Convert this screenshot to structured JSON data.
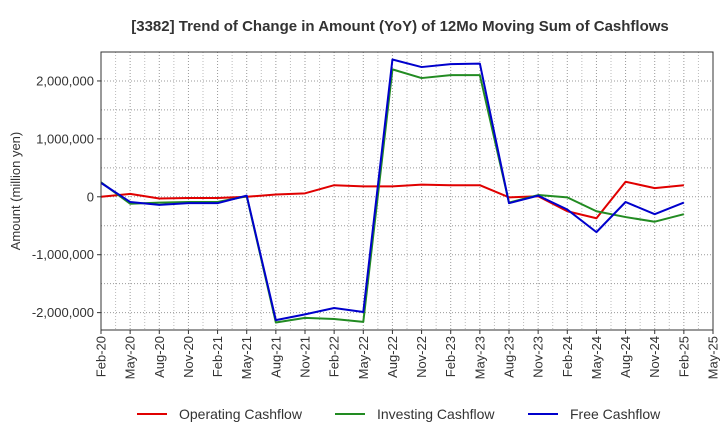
{
  "chart_data": {
    "type": "line",
    "title": "[3382]  Trend of Change in Amount (YoY) of 12Mo Moving Sum of Cashflows",
    "xlabel": "",
    "ylabel": "Amount (million yen)",
    "ylim": [
      -2300000,
      2500000
    ],
    "yticks": [
      -2000000,
      -1000000,
      0,
      1000000,
      2000000
    ],
    "ytick_labels": [
      "-2,000,000",
      "-1,000,000",
      "0",
      "1,000,000",
      "2,000,000"
    ],
    "x_tick_labels": [
      "Feb-20",
      "May-20",
      "Aug-20",
      "Nov-20",
      "Feb-21",
      "May-21",
      "Aug-21",
      "Nov-21",
      "Feb-22",
      "May-22",
      "Aug-22",
      "Nov-22",
      "Feb-23",
      "May-23",
      "Aug-23",
      "Nov-23",
      "Feb-24",
      "May-24",
      "Aug-24",
      "Nov-24",
      "Feb-25",
      "May-25"
    ],
    "grid": true,
    "legend_position": "bottom",
    "series": [
      {
        "name": "Operating Cashflow",
        "color": "#e00000",
        "values": [
          0,
          50000,
          -30000,
          -20000,
          -20000,
          0,
          40000,
          60000,
          200000,
          180000,
          180000,
          210000,
          200000,
          200000,
          -10000,
          10000,
          -250000,
          -370000,
          260000,
          150000,
          200000,
          null
        ]
      },
      {
        "name": "Investing Cashflow",
        "color": "#228b22",
        "values": [
          250000,
          -120000,
          -100000,
          -90000,
          -90000,
          10000,
          -2170000,
          -2090000,
          -2110000,
          -2160000,
          2200000,
          2050000,
          2100000,
          2100000,
          -100000,
          30000,
          -10000,
          -250000,
          -350000,
          -430000,
          -300000,
          null
        ]
      },
      {
        "name": "Free Cashflow",
        "color": "#0000cc",
        "values": [
          240000,
          -90000,
          -140000,
          -110000,
          -110000,
          20000,
          -2130000,
          -2030000,
          -1920000,
          -1990000,
          2370000,
          2240000,
          2290000,
          2300000,
          -110000,
          20000,
          -220000,
          -610000,
          -90000,
          -300000,
          -100000,
          null
        ]
      }
    ]
  }
}
